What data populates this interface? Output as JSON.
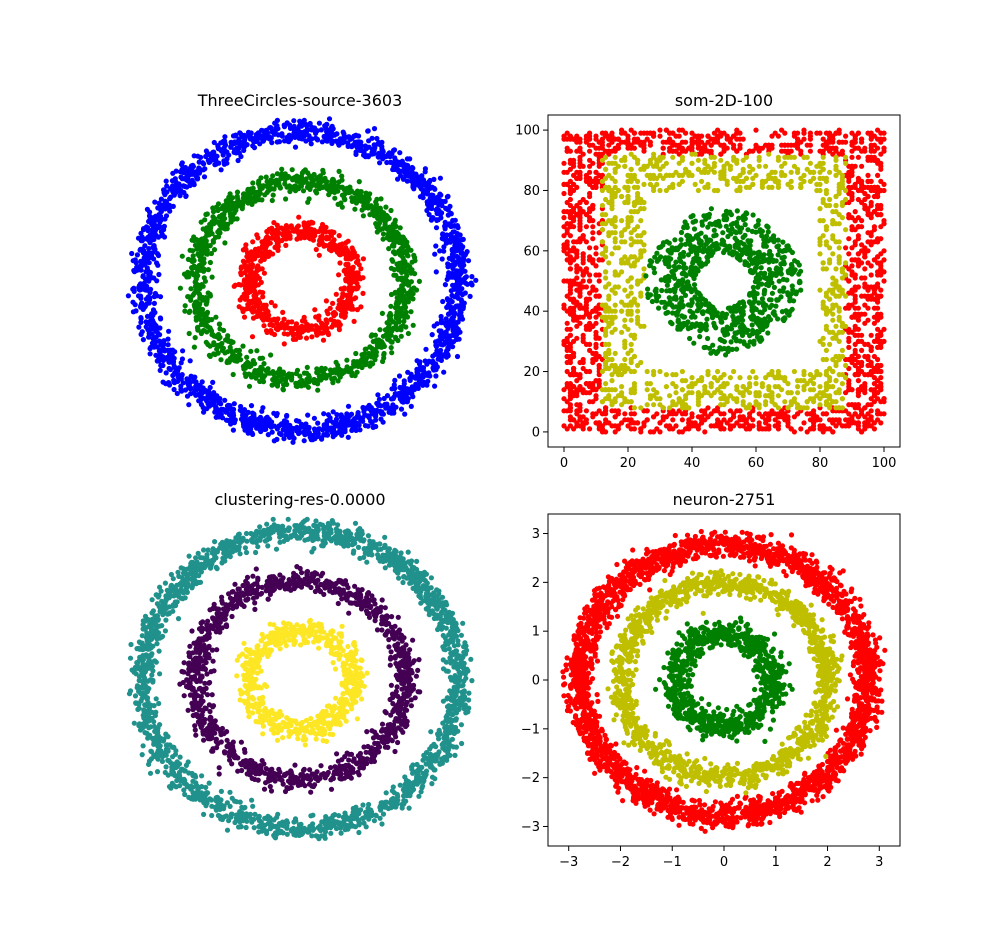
{
  "figure": {
    "background": "#ffffff"
  },
  "chart_data": [
    {
      "id": "p1",
      "type": "scatter",
      "title": "ThreeCircles-source-3603",
      "axes_visible": false,
      "xlim": [
        -3.35,
        3.35
      ],
      "ylim": [
        -3.35,
        3.35
      ],
      "series": [
        {
          "color": "#0000ff",
          "shape": "circle",
          "center": [
            0,
            0
          ],
          "radius": 3,
          "noise": 0.12,
          "count": 1800
        },
        {
          "color": "#008000",
          "shape": "circle",
          "center": [
            0,
            0
          ],
          "radius": 2,
          "noise": 0.12,
          "count": 1150
        },
        {
          "color": "#ff0000",
          "shape": "circle",
          "center": [
            0,
            0
          ],
          "radius": 1,
          "noise": 0.12,
          "count": 650
        }
      ]
    },
    {
      "id": "p2",
      "type": "scatter",
      "title": "som-2D-100",
      "axes_visible": true,
      "xlim": [
        -5,
        105
      ],
      "ylim": [
        -5,
        105
      ],
      "xticks": [
        "0",
        "20",
        "40",
        "60",
        "80",
        "100"
      ],
      "yticks": [
        "0",
        "20",
        "40",
        "60",
        "80",
        "100"
      ],
      "series": [
        {
          "color": "#ff0000",
          "shape": "square-band",
          "inner": [
            [
              12,
              88
            ],
            [
              8,
              92
            ]
          ],
          "outer": [
            [
              0,
              100
            ],
            [
              0,
              100
            ]
          ],
          "grid": true,
          "count": 1600
        },
        {
          "color": "#bfbf00",
          "shape": "square-band",
          "inner": [
            [
              25,
              80
            ],
            [
              20,
              80
            ]
          ],
          "outer": [
            [
              12,
              88
            ],
            [
              8,
              92
            ]
          ],
          "grid": true,
          "count": 1000
        },
        {
          "color": "#008000",
          "shape": "disk",
          "center": [
            50,
            50
          ],
          "radii": [
            8,
            22
          ],
          "count": 800
        }
      ]
    },
    {
      "id": "p3",
      "type": "scatter",
      "title": "clustering-res-0.0000",
      "axes_visible": false,
      "xlim": [
        -3.35,
        3.35
      ],
      "ylim": [
        -3.35,
        3.35
      ],
      "series": [
        {
          "color": "#21918c",
          "shape": "circle",
          "center": [
            0,
            0
          ],
          "radius": 3,
          "noise": 0.12,
          "count": 1800
        },
        {
          "color": "#440154",
          "shape": "circle",
          "center": [
            0,
            0
          ],
          "radius": 2,
          "noise": 0.12,
          "count": 1150
        },
        {
          "color": "#fde725",
          "shape": "circle",
          "center": [
            0,
            0
          ],
          "radius": 1,
          "noise": 0.12,
          "count": 650
        }
      ]
    },
    {
      "id": "p4",
      "type": "scatter",
      "title": "neuron-2751",
      "axes_visible": true,
      "xlim": [
        -3.4,
        3.4
      ],
      "ylim": [
        -3.4,
        3.4
      ],
      "xticks": [
        "−3",
        "−2",
        "−1",
        "0",
        "1",
        "2",
        "3"
      ],
      "yticks": [
        "−3",
        "−2",
        "−1",
        "0",
        "1",
        "2",
        "3"
      ],
      "series": [
        {
          "color": "#ff0000",
          "shape": "circle",
          "center": [
            0,
            0
          ],
          "radius": 2.78,
          "noise": 0.13,
          "count": 2600
        },
        {
          "color": "#bfbf00",
          "shape": "circle",
          "center": [
            0,
            0
          ],
          "radius": 2.0,
          "noise": 0.12,
          "count": 1300
        },
        {
          "color": "#008000",
          "shape": "circle",
          "center": [
            0,
            0
          ],
          "radius": 0.95,
          "noise": 0.14,
          "count": 800
        }
      ]
    }
  ]
}
